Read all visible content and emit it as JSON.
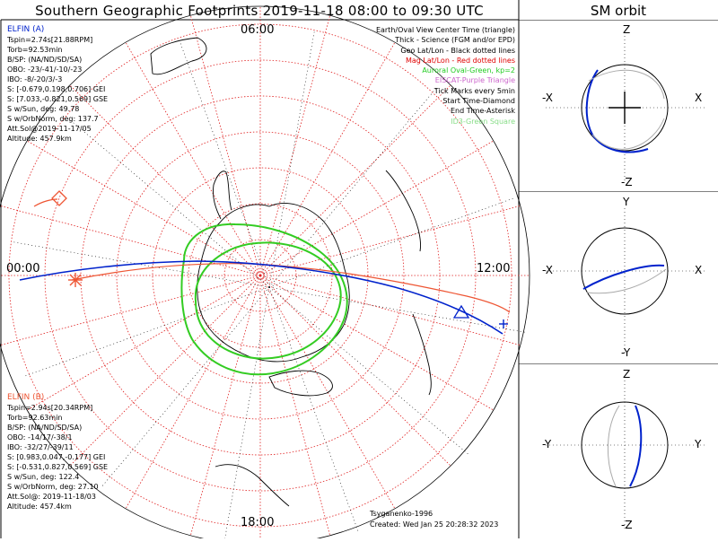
{
  "title": "Southern Geographic Footprints 2019-11-18 08:00 to 09:30 UTC",
  "sm_title": "SM orbit",
  "elfin_a": {
    "header": "ELFIN (A)",
    "lines": [
      "Tspin=2.74s[21.88RPM]",
      "Torb=92.53min",
      "B/SP: (NA/ND/SD/SA)",
      "OBO: -23/-41/-10/-23",
      "IBO: -8/-20/3/-3",
      "S: [-0.679,0.198,0.706] GEI",
      "S: [7.033,-0.821,0.569] GSE",
      "S w/Sun, deg: 49.78",
      "S w/OrbNorm, deg: 137.7",
      "Att.Sol@2019-11-17/05",
      "Altitude: 457.9km"
    ]
  },
  "elfin_b": {
    "header": "ELFIN (B)",
    "lines": [
      "Tspin=2.94s[20.34RPM]",
      "Torb=92.63min",
      "B/SP: (NA/ND/SD/SA)",
      "OBO: -14/17/-38/1",
      "IBO: -32/27/-39/11",
      "S: [0.983,0.047,-0.177] GEI",
      "S: [-0.531,0.827,0.569] GSE",
      "S w/Sun, deg: 122.4",
      "S w/OrbNorm, deg: 27.10",
      "Att.Sol@: 2019-11-18/03",
      "Altitude: 457.4km"
    ]
  },
  "legend": [
    {
      "text": "Earth/Oval View Center Time (triangle)",
      "color": "#000000"
    },
    {
      "text": "Thick - Science (FGM and/or EPD)",
      "color": "#000000"
    },
    {
      "text": "Geo Lat/Lon - Black dotted lines",
      "color": "#000000"
    },
    {
      "text": "Mag Lat/Lon - Red dotted lines",
      "color": "#e00000"
    },
    {
      "text": "Auroral Oval-Green, kp=2",
      "color": "#22cc22"
    },
    {
      "text": "EISCAT-Purple Triangle",
      "color": "#cc66cc"
    },
    {
      "text": "Tick Marks every 5min",
      "color": "#000000"
    },
    {
      "text": "Start Time-Diamond",
      "color": "#000000"
    },
    {
      "text": "End Time-Asterisk",
      "color": "#000000"
    },
    {
      "text": "ID3-Green Square",
      "color": "#88dd88"
    }
  ],
  "credits": {
    "model": "Tsyganenko-1996",
    "created": "Created: Wed Jan 25 20:28:32 2023"
  },
  "mlt_labels": {
    "top": "06:00",
    "left": "00:00",
    "right": "12:00",
    "bottom": "18:00"
  },
  "sm_panels": [
    {
      "top": "Z",
      "bottom": "-Z",
      "left": "-X",
      "right": "X"
    },
    {
      "top": "Y",
      "bottom": "-Y",
      "left": "-X",
      "right": "X"
    },
    {
      "top": "Z",
      "bottom": "-Z",
      "left": "-Y",
      "right": "Y"
    }
  ],
  "colors": {
    "elfin_a": "#0022cc",
    "elfin_b": "#ee5533",
    "oval": "#33cc22",
    "grid": "#ee2222",
    "geo": "#000000"
  }
}
